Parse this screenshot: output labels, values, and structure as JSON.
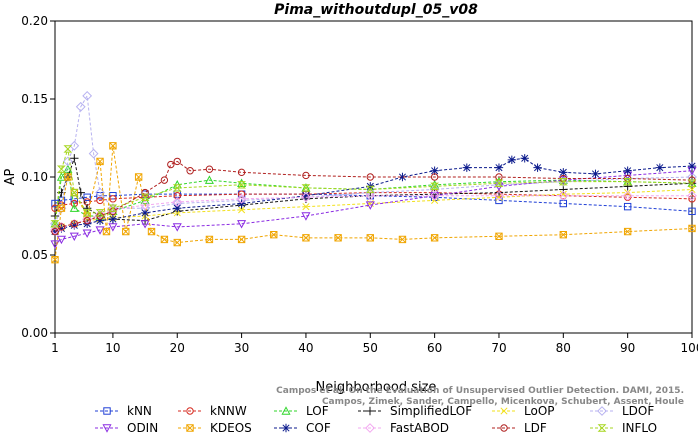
{
  "chart_data": {
    "type": "line",
    "title": "Pima_withoutdupl_05_v08",
    "xlabel": "Neighborhood size",
    "ylabel": "AP",
    "xlim": [
      1,
      100
    ],
    "ylim": [
      0,
      0.2
    ],
    "x_ticks": [
      1,
      10,
      20,
      30,
      40,
      50,
      60,
      70,
      80,
      90,
      100
    ],
    "y_ticks": [
      "0.00",
      "0.05",
      "0.10",
      "0.15",
      "0.20"
    ],
    "grid": false,
    "legend_position": "bottom",
    "watermark": [
      "Campos et al. On the Evaluation of Unsupervised Outlier Detection. DAMI, 2015.",
      "Campos, Zimek, Sander, Campello, Micenkova, Schubert, Assent, Houle"
    ],
    "series": [
      {
        "name": "kNN",
        "color": "#1f3fd6",
        "marker": "square",
        "x": [
          1,
          2,
          4,
          6,
          8,
          10,
          15,
          20,
          30,
          40,
          50,
          60,
          70,
          80,
          90,
          100
        ],
        "y": [
          0.083,
          0.085,
          0.086,
          0.087,
          0.088,
          0.088,
          0.089,
          0.089,
          0.089,
          0.089,
          0.088,
          0.087,
          0.085,
          0.083,
          0.081,
          0.078
        ]
      },
      {
        "name": "kNNW",
        "color": "#d62a1f",
        "marker": "circle",
        "x": [
          1,
          2,
          4,
          6,
          8,
          10,
          15,
          20,
          30,
          40,
          50,
          60,
          70,
          80,
          90,
          100
        ],
        "y": [
          0.08,
          0.082,
          0.083,
          0.084,
          0.085,
          0.086,
          0.087,
          0.088,
          0.089,
          0.089,
          0.09,
          0.09,
          0.089,
          0.088,
          0.087,
          0.086
        ]
      },
      {
        "name": "LOF",
        "color": "#2fd62a",
        "marker": "triangle",
        "x": [
          1,
          2,
          3,
          4,
          6,
          8,
          10,
          15,
          20,
          25,
          30,
          40,
          50,
          60,
          70,
          80,
          90,
          100
        ],
        "y": [
          0.07,
          0.1,
          0.105,
          0.08,
          0.075,
          0.075,
          0.078,
          0.085,
          0.095,
          0.098,
          0.096,
          0.093,
          0.092,
          0.095,
          0.097,
          0.098,
          0.097,
          0.096
        ]
      },
      {
        "name": "SimplifiedLOF",
        "color": "#111111",
        "marker": "plus",
        "x": [
          1,
          2,
          3,
          4,
          5,
          6,
          8,
          10,
          15,
          20,
          30,
          40,
          50,
          60,
          70,
          80,
          90,
          100
        ],
        "y": [
          0.075,
          0.09,
          0.1,
          0.112,
          0.09,
          0.08,
          0.075,
          0.073,
          0.072,
          0.078,
          0.082,
          0.086,
          0.088,
          0.089,
          0.09,
          0.092,
          0.094,
          0.096
        ]
      },
      {
        "name": "LoOP",
        "color": "#f2e01a",
        "marker": "x",
        "x": [
          1,
          2,
          4,
          6,
          8,
          10,
          15,
          20,
          30,
          40,
          50,
          60,
          70,
          80,
          90,
          100
        ],
        "y": [
          0.065,
          0.068,
          0.07,
          0.072,
          0.073,
          0.074,
          0.075,
          0.077,
          0.079,
          0.081,
          0.083,
          0.085,
          0.087,
          0.089,
          0.09,
          0.092
        ]
      },
      {
        "name": "LDOF",
        "color": "#b7b2f0",
        "marker": "diamond",
        "x": [
          1,
          2,
          3,
          4,
          5,
          6,
          7,
          8,
          10,
          15,
          20,
          30,
          40,
          50,
          60,
          70,
          80,
          90,
          100
        ],
        "y": [
          0.07,
          0.08,
          0.11,
          0.12,
          0.145,
          0.152,
          0.115,
          0.09,
          0.08,
          0.08,
          0.083,
          0.085,
          0.087,
          0.09,
          0.092,
          0.095,
          0.097,
          0.099,
          0.1
        ]
      },
      {
        "name": "ODIN",
        "color": "#8a2be2",
        "marker": "triangle-down",
        "x": [
          1,
          2,
          4,
          6,
          8,
          10,
          15,
          20,
          30,
          40,
          50,
          60,
          70,
          80,
          90,
          100
        ],
        "y": [
          0.057,
          0.06,
          0.062,
          0.064,
          0.066,
          0.068,
          0.07,
          0.068,
          0.07,
          0.075,
          0.082,
          0.088,
          0.094,
          0.098,
          0.101,
          0.104
        ]
      },
      {
        "name": "KDEOS",
        "color": "#f0a500",
        "marker": "square-x",
        "x": [
          1,
          2,
          3,
          4,
          6,
          8,
          9,
          10,
          12,
          14,
          16,
          18,
          20,
          25,
          30,
          35,
          40,
          45,
          50,
          55,
          60,
          70,
          80,
          90,
          100
        ],
        "y": [
          0.047,
          0.08,
          0.1,
          0.09,
          0.075,
          0.11,
          0.065,
          0.12,
          0.065,
          0.1,
          0.065,
          0.06,
          0.058,
          0.06,
          0.06,
          0.063,
          0.061,
          0.061,
          0.061,
          0.06,
          0.061,
          0.062,
          0.063,
          0.065,
          0.067
        ]
      },
      {
        "name": "COF",
        "color": "#0b1a8c",
        "marker": "star",
        "x": [
          1,
          2,
          4,
          6,
          8,
          10,
          15,
          20,
          30,
          40,
          50,
          55,
          60,
          65,
          70,
          72,
          74,
          76,
          80,
          85,
          90,
          95,
          100
        ],
        "y": [
          0.065,
          0.067,
          0.069,
          0.07,
          0.072,
          0.073,
          0.077,
          0.08,
          0.083,
          0.088,
          0.094,
          0.1,
          0.104,
          0.106,
          0.106,
          0.111,
          0.112,
          0.106,
          0.103,
          0.102,
          0.104,
          0.106,
          0.107
        ]
      },
      {
        "name": "FastABOD",
        "color": "#f2a8f0",
        "marker": "diamond",
        "x": [
          1,
          2,
          4,
          6,
          8,
          10,
          15,
          20,
          30,
          40,
          50,
          60,
          70,
          80,
          90,
          100
        ],
        "y": [
          0.066,
          0.068,
          0.07,
          0.073,
          0.076,
          0.079,
          0.082,
          0.084,
          0.086,
          0.087,
          0.088,
          0.088,
          0.088,
          0.088,
          0.088,
          0.088
        ]
      },
      {
        "name": "LDF",
        "color": "#b0201f",
        "marker": "circle",
        "x": [
          1,
          2,
          4,
          6,
          8,
          10,
          15,
          18,
          19,
          20,
          22,
          25,
          30,
          40,
          50,
          60,
          70,
          80,
          90,
          100
        ],
        "y": [
          0.065,
          0.068,
          0.07,
          0.072,
          0.075,
          0.078,
          0.09,
          0.098,
          0.108,
          0.11,
          0.104,
          0.105,
          0.103,
          0.101,
          0.1,
          0.1,
          0.1,
          0.099,
          0.099,
          0.098
        ]
      },
      {
        "name": "INFLO",
        "color": "#a6d61f",
        "marker": "hourglass",
        "x": [
          1,
          2,
          3,
          4,
          6,
          8,
          10,
          15,
          20,
          30,
          40,
          50,
          60,
          70,
          80,
          90,
          100
        ],
        "y": [
          0.07,
          0.105,
          0.118,
          0.09,
          0.077,
          0.077,
          0.08,
          0.087,
          0.093,
          0.095,
          0.093,
          0.092,
          0.094,
          0.096,
          0.097,
          0.097,
          0.096
        ]
      }
    ]
  }
}
